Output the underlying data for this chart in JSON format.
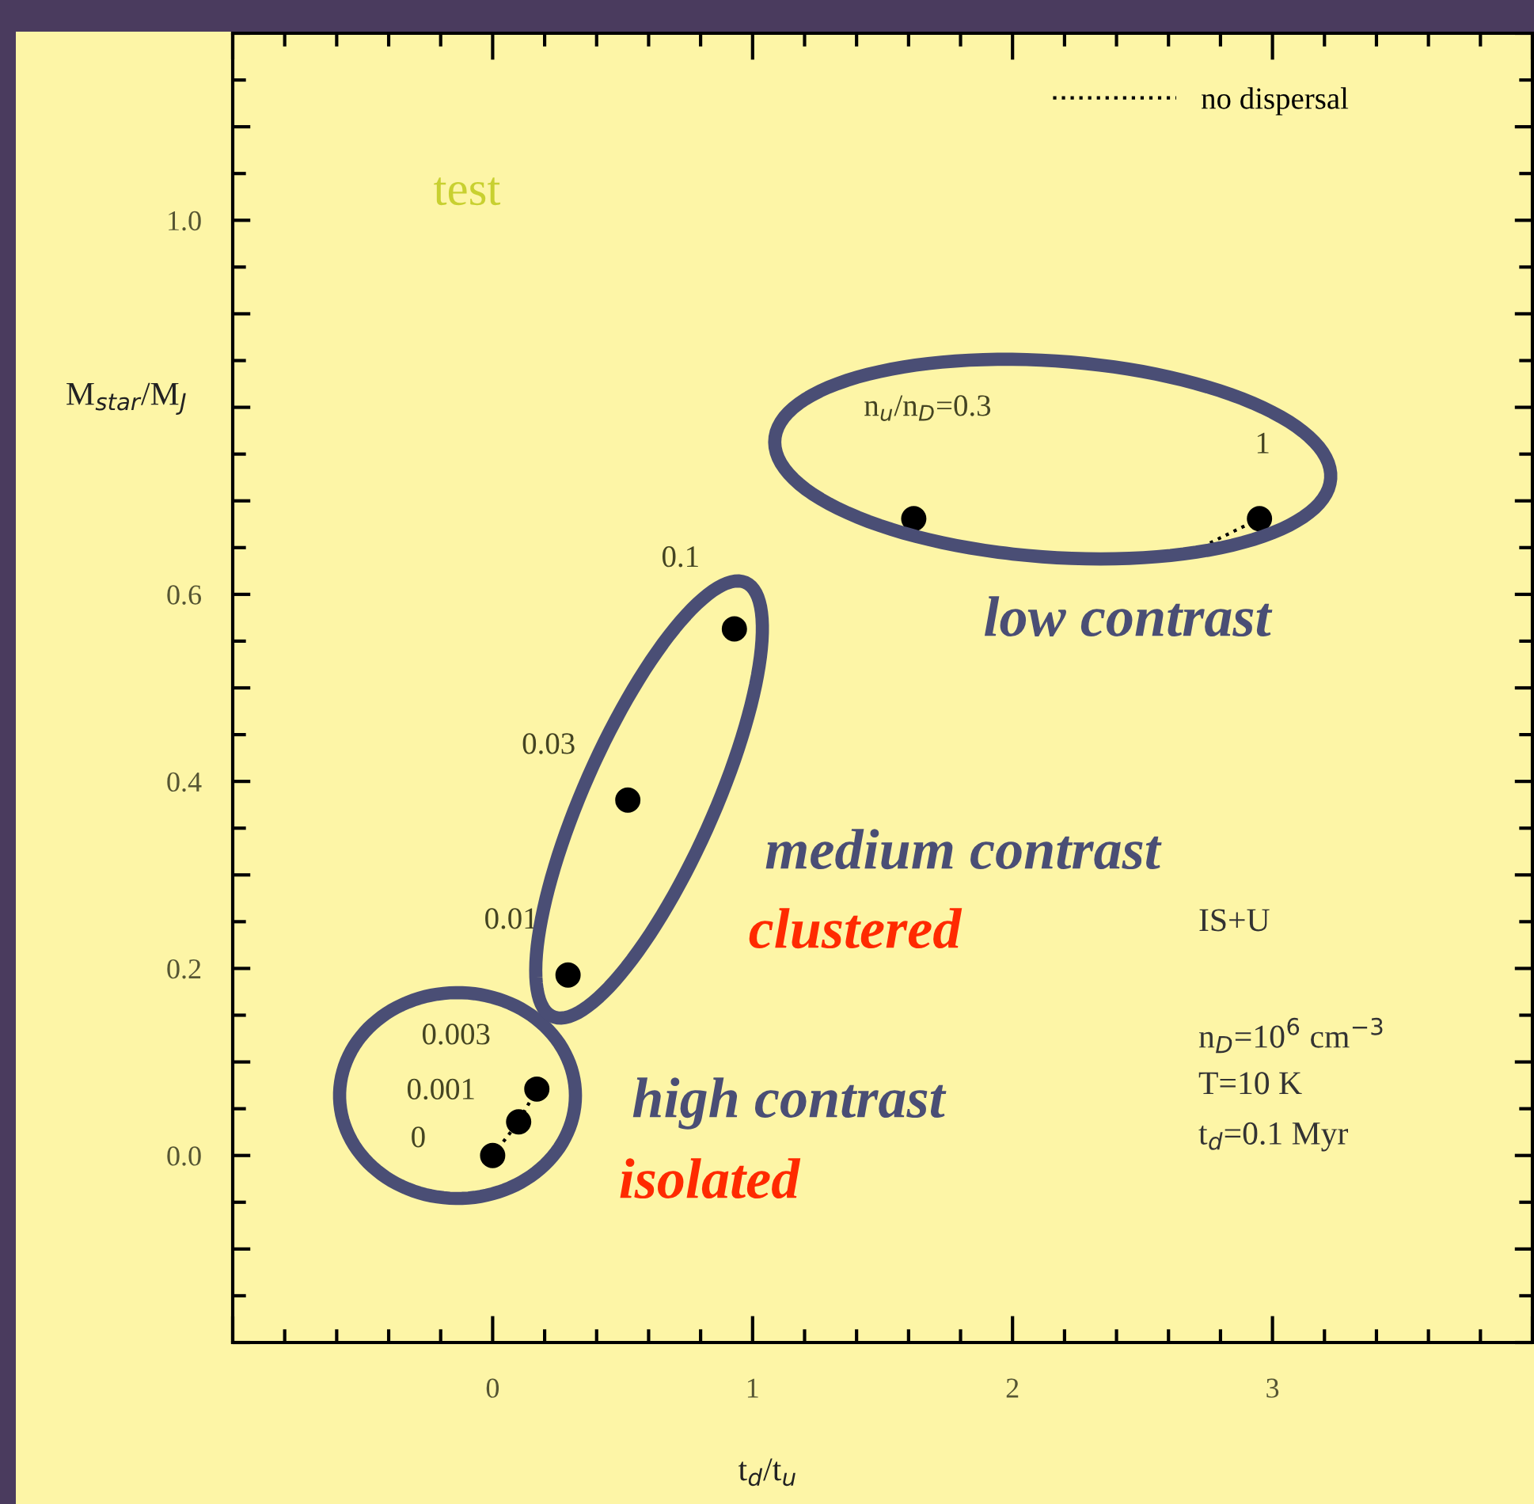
{
  "chart_data": {
    "type": "scatter",
    "xlabel": "t$_{d}$/t$_{u}$",
    "ylabel": "M$_{star}$/M$_{J}$",
    "xlim": [
      -1,
      4
    ],
    "ylim": [
      -0.2,
      1.2
    ],
    "xticks": [
      {
        "value": -1,
        "label": null
      },
      0,
      1,
      2,
      3,
      {
        "value": 4,
        "label": null
      }
    ],
    "yticks": [
      {
        "value": -0.2,
        "label": null
      },
      {
        "value": -0.1,
        "label": null
      },
      "0.0",
      {
        "value": 0.1,
        "label": null
      },
      0.2,
      {
        "value": 0.3,
        "label": null
      },
      0.4,
      {
        "value": 0.5,
        "label": null
      },
      0.6,
      {
        "value": 0.7,
        "label": null
      },
      {
        "value": 0.8,
        "label": null
      },
      {
        "value": 0.9,
        "label": null
      },
      "1.0",
      {
        "value": 1.1,
        "label": null
      },
      {
        "value": 1.2,
        "label": null
      }
    ],
    "grid": false,
    "legend": "top right",
    "series": [
      {
        "type": "scatter",
        "color": "#000000",
        "marker": "circle",
        "x": [
          0,
          0.1,
          0.17,
          0.29,
          0.52,
          0.93,
          1.62,
          2.95
        ],
        "values": [
          0,
          0.036,
          0.071,
          0.193,
          0.38,
          0.563,
          0.681,
          0.681
        ]
      },
      {
        "type": "line",
        "name": "no dispersal",
        "color": "#000000",
        "line_style": "dotted",
        "marker": "none",
        "x": [
          0,
          0.1,
          0.17,
          null,
          2.76,
          2.95
        ],
        "values": [
          0,
          0.036,
          0.071,
          null,
          0.655,
          0.681
        ]
      }
    ],
    "annotations": [
      {
        "text": "0",
        "x": 0,
        "y": 0
      },
      {
        "text": "0.001",
        "x": 0.1,
        "y": 0.036
      },
      {
        "text": "0.003",
        "x": 0.17,
        "y": 0.071
      },
      {
        "text": "0.01",
        "x": 0.29,
        "y": 0.193
      },
      {
        "text": "0.03",
        "x": 0.52,
        "y": 0.38
      },
      {
        "text": "0.1",
        "x": 0.93,
        "y": 0.563
      },
      "n$_{u}$/n$_{D}$=0.3",
      {
        "text": "1",
        "x": 2.95,
        "y": 0.681
      },
      "test",
      "IS+U",
      "n$_{D}$=10$^{6}$ cm$^{−3}$",
      "T=10 K",
      "t$_{d}$=0.1 Myr",
      "low contrast",
      "medium contrast",
      "clustered",
      "high contrast",
      "isolated"
    ]
  }
}
